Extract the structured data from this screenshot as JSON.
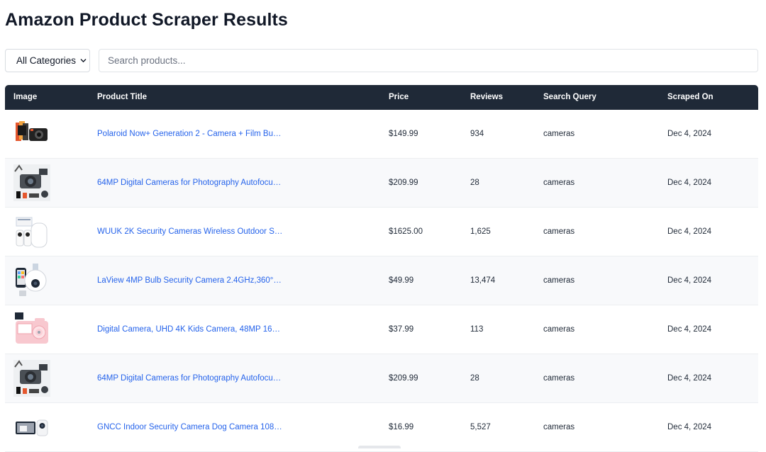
{
  "page": {
    "title": "Amazon Product Scraper Results"
  },
  "filters": {
    "category_selected": "All Categories",
    "search_placeholder": "Search products..."
  },
  "table": {
    "headers": {
      "image": "Image",
      "title": "Product Title",
      "price": "Price",
      "reviews": "Reviews",
      "query": "Search Query",
      "date": "Scraped On"
    },
    "rows": [
      {
        "image": "polaroid-camera-bundle-image",
        "title": "Polaroid Now+ Generation 2 - Camera + Film Bu…",
        "price": "$149.99",
        "reviews": "934",
        "query": "cameras",
        "date": "Dec 4, 2024"
      },
      {
        "image": "digital-camera-kit-image",
        "title": "64MP Digital Cameras for Photography Autofocu…",
        "price": "$209.99",
        "reviews": "28",
        "query": "cameras",
        "date": "Dec 4, 2024"
      },
      {
        "image": "wireless-security-camera-image",
        "title": "WUUK 2K Security Cameras Wireless Outdoor S…",
        "price": "$1625.00",
        "reviews": "1,625",
        "query": "cameras",
        "date": "Dec 4, 2024"
      },
      {
        "image": "bulb-security-camera-image",
        "title": "LaView 4MP Bulb Security Camera 2.4GHz,360°…",
        "price": "$49.99",
        "reviews": "13,474",
        "query": "cameras",
        "date": "Dec 4, 2024"
      },
      {
        "image": "kids-camera-pink-image",
        "title": "Digital Camera, UHD 4K Kids Camera, 48MP 16…",
        "price": "$37.99",
        "reviews": "113",
        "query": "cameras",
        "date": "Dec 4, 2024"
      },
      {
        "image": "digital-camera-kit-image",
        "title": "64MP Digital Cameras for Photography Autofocu…",
        "price": "$209.99",
        "reviews": "28",
        "query": "cameras",
        "date": "Dec 4, 2024"
      },
      {
        "image": "indoor-security-camera-image",
        "title": "GNCC Indoor Security Camera Dog Camera 108…",
        "price": "$16.99",
        "reviews": "5,527",
        "query": "cameras",
        "date": "Dec 4, 2024"
      }
    ]
  },
  "colors": {
    "header_bg": "#1f2937",
    "link": "#2563eb",
    "row_alt": "#f8f9fb"
  }
}
